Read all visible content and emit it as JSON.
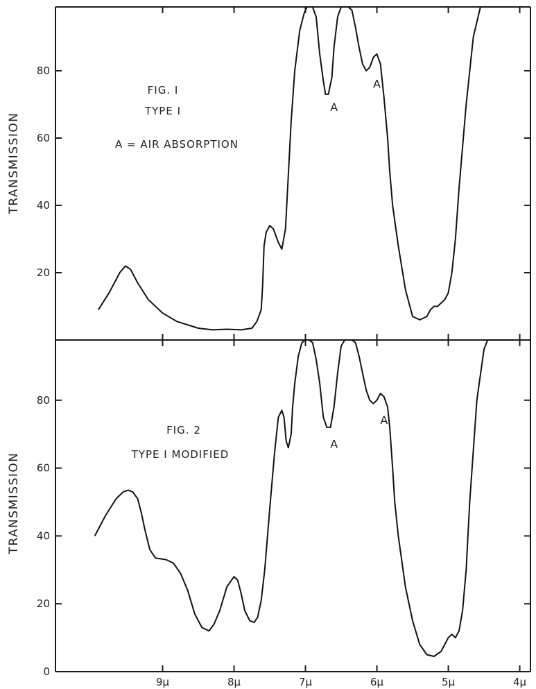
{
  "chart_data": [
    {
      "type": "line",
      "title": "FIG. I",
      "subtitle": "TYPE I",
      "note": "A = AIR ABSORPTION",
      "xlabel": "",
      "ylabel": "TRANSMISSION",
      "xlim": [
        10.5,
        3.85
      ],
      "ylim": [
        0,
        100
      ],
      "x_reversed": true,
      "yticks": [
        20,
        40,
        60,
        80
      ],
      "ytick_labels": [
        "20",
        "40",
        "60",
        "80"
      ],
      "xticks": [
        9,
        8,
        7,
        6,
        5,
        4
      ],
      "xtick_labels": [],
      "annotations": [
        {
          "text": "A",
          "x": 6.6,
          "y": 68
        },
        {
          "text": "A",
          "x": 6.0,
          "y": 75
        }
      ],
      "series": [
        {
          "x": [
            9.9,
            9.75,
            9.6,
            9.52,
            9.45,
            9.35,
            9.2,
            9.0,
            8.8,
            8.5,
            8.3,
            8.1,
            7.9,
            7.75,
            7.68,
            7.62,
            7.6,
            7.58,
            7.55,
            7.5,
            7.45,
            7.38,
            7.33,
            7.28,
            7.25,
            7.2,
            7.15,
            7.08,
            7.02,
            6.98,
            6.95,
            6.9,
            6.85,
            6.8,
            6.75,
            6.72,
            6.68,
            6.63,
            6.6,
            6.55,
            6.5,
            6.45,
            6.4,
            6.35,
            6.3,
            6.25,
            6.2,
            6.15,
            6.1,
            6.05,
            6.0,
            5.95,
            5.9,
            5.85,
            5.82,
            5.78,
            5.7,
            5.6,
            5.5,
            5.4,
            5.3,
            5.25,
            5.2,
            5.15,
            5.1,
            5.05,
            5.0,
            4.95,
            4.9,
            4.85,
            4.75,
            4.65,
            4.55,
            4.45,
            4.3,
            4.2,
            4.1
          ],
          "y": [
            9,
            14,
            20,
            22,
            21,
            17,
            12,
            8,
            5.5,
            3.5,
            3,
            3.2,
            3,
            3.5,
            5.5,
            9,
            16,
            28,
            32,
            34,
            33,
            29,
            27,
            33,
            45,
            65,
            80,
            92,
            97,
            99,
            99.5,
            99,
            96,
            85,
            77,
            73,
            73,
            78,
            87,
            96,
            99,
            99.5,
            99.5,
            98,
            93,
            87,
            82,
            80,
            81,
            84,
            85,
            82,
            72,
            60,
            50,
            40,
            28,
            15,
            7,
            6,
            7,
            9,
            10,
            10,
            11,
            12,
            14,
            20,
            30,
            45,
            70,
            90,
            100,
            100,
            100,
            100,
            100
          ]
        }
      ]
    },
    {
      "type": "line",
      "title": "FIG. 2",
      "subtitle": "TYPE I MODIFIED",
      "xlabel": "",
      "ylabel": "TRANSMISSION",
      "xlim": [
        10.5,
        3.85
      ],
      "ylim": [
        0,
        100
      ],
      "x_reversed": true,
      "yticks": [
        0,
        20,
        40,
        60,
        80
      ],
      "ytick_labels": [
        "0",
        "20",
        "40",
        "60",
        "80"
      ],
      "xticks": [
        9,
        8,
        7,
        6,
        5,
        4
      ],
      "xtick_labels": [
        "9μ",
        "8μ",
        "7μ",
        "6μ",
        "5μ",
        "4μ"
      ],
      "annotations": [
        {
          "text": "A",
          "x": 6.6,
          "y": 66
        },
        {
          "text": "A",
          "x": 5.9,
          "y": 73
        }
      ],
      "series": [
        {
          "x": [
            9.95,
            9.8,
            9.65,
            9.55,
            9.48,
            9.42,
            9.35,
            9.3,
            9.25,
            9.18,
            9.1,
            8.95,
            8.85,
            8.75,
            8.65,
            8.55,
            8.45,
            8.35,
            8.28,
            8.2,
            8.1,
            8.0,
            7.95,
            7.9,
            7.85,
            7.78,
            7.72,
            7.67,
            7.62,
            7.57,
            7.5,
            7.43,
            7.38,
            7.33,
            7.3,
            7.27,
            7.24,
            7.2,
            7.18,
            7.15,
            7.1,
            7.05,
            7.0,
            6.95,
            6.9,
            6.85,
            6.8,
            6.75,
            6.7,
            6.65,
            6.6,
            6.55,
            6.5,
            6.45,
            6.4,
            6.35,
            6.3,
            6.25,
            6.2,
            6.15,
            6.1,
            6.05,
            6.0,
            5.95,
            5.9,
            5.85,
            5.82,
            5.78,
            5.75,
            5.7,
            5.6,
            5.5,
            5.4,
            5.3,
            5.2,
            5.1,
            5.05,
            5.0,
            4.95,
            4.9,
            4.85,
            4.8,
            4.75,
            4.7,
            4.6,
            4.5,
            4.45,
            4.4,
            4.35,
            4.3,
            4.2,
            4.1
          ],
          "y": [
            40,
            46,
            51,
            53,
            53.5,
            53,
            51,
            47,
            42,
            36,
            33.5,
            33,
            32,
            29,
            24,
            17,
            13,
            12,
            14,
            18,
            25,
            28,
            27,
            23,
            18,
            15,
            14.5,
            16,
            21,
            30,
            48,
            65,
            75,
            77,
            75,
            68,
            66,
            70,
            78,
            85,
            93,
            97,
            99,
            99,
            97,
            92,
            85,
            75,
            72,
            72,
            78,
            88,
            96,
            99,
            99.5,
            99,
            97,
            93,
            88,
            83,
            80,
            79,
            80,
            82,
            81,
            78,
            72,
            60,
            50,
            40,
            25,
            15,
            8,
            5,
            4.5,
            6,
            8,
            10,
            11,
            10,
            12,
            18,
            30,
            50,
            80,
            95,
            100,
            100,
            100,
            100,
            100,
            100
          ]
        }
      ]
    }
  ]
}
